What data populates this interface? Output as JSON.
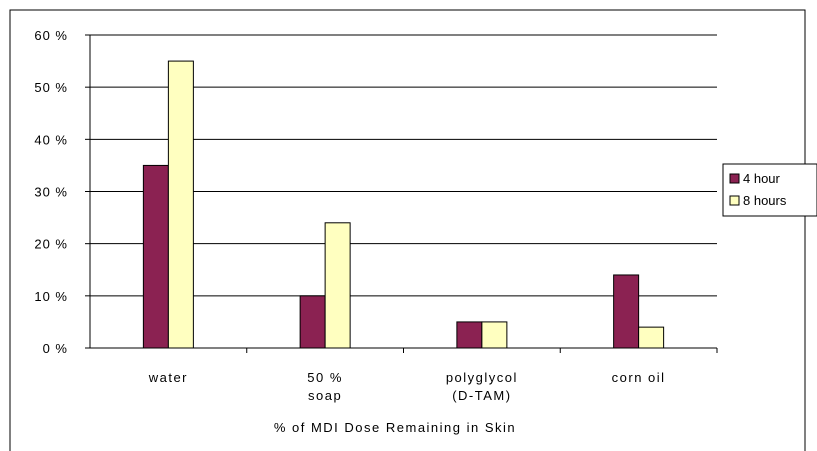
{
  "chart_data": {
    "type": "bar",
    "categories": [
      [
        "water"
      ],
      [
        "50 %",
        "soap"
      ],
      [
        "polyglycol",
        "(D-TAM)"
      ],
      [
        "corn oil"
      ]
    ],
    "series": [
      {
        "name": "4 hour",
        "values": [
          35,
          10,
          5,
          14
        ],
        "color": "#8B2252"
      },
      {
        "name": "8 hours",
        "values": [
          55,
          24,
          5,
          4
        ],
        "color": "#FFFFC0"
      }
    ],
    "ylim": [
      0,
      60
    ],
    "yticks": [
      0,
      10,
      20,
      30,
      40,
      50,
      60
    ],
    "ytick_labels": [
      "0 %",
      "10 %",
      "20 %",
      "30 %",
      "40 %",
      "50 %",
      "60 %"
    ],
    "xlabel": "% of MDI Dose Remaining in Skin",
    "ylabel": "",
    "title": "",
    "grid": true,
    "legend_position": "right"
  }
}
